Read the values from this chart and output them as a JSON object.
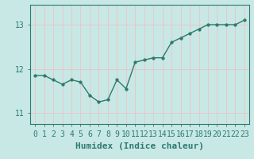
{
  "x": [
    0,
    1,
    2,
    3,
    4,
    5,
    6,
    7,
    8,
    9,
    10,
    11,
    12,
    13,
    14,
    15,
    16,
    17,
    18,
    19,
    20,
    21,
    22,
    23
  ],
  "y": [
    11.85,
    11.85,
    11.75,
    11.65,
    11.75,
    11.7,
    11.4,
    11.25,
    11.3,
    11.75,
    11.55,
    12.15,
    12.2,
    12.25,
    12.25,
    12.6,
    12.7,
    12.8,
    12.9,
    13.0,
    13.0,
    13.0,
    13.0,
    13.1
  ],
  "line_color": "#2d7a6e",
  "marker": "o",
  "marker_size": 2.5,
  "bg_color": "#c8e8e5",
  "grid_color": "#e8c8c8",
  "xlabel": "Humidex (Indice chaleur)",
  "xlim": [
    -0.5,
    23.5
  ],
  "ylim": [
    10.75,
    13.45
  ],
  "yticks": [
    11,
    12,
    13
  ],
  "xticks": [
    0,
    1,
    2,
    3,
    4,
    5,
    6,
    7,
    8,
    9,
    10,
    11,
    12,
    13,
    14,
    15,
    16,
    17,
    18,
    19,
    20,
    21,
    22,
    23
  ],
  "xlabel_fontsize": 8,
  "tick_fontsize": 7,
  "axis_color": "#2d7a6e",
  "line_width": 1.0
}
